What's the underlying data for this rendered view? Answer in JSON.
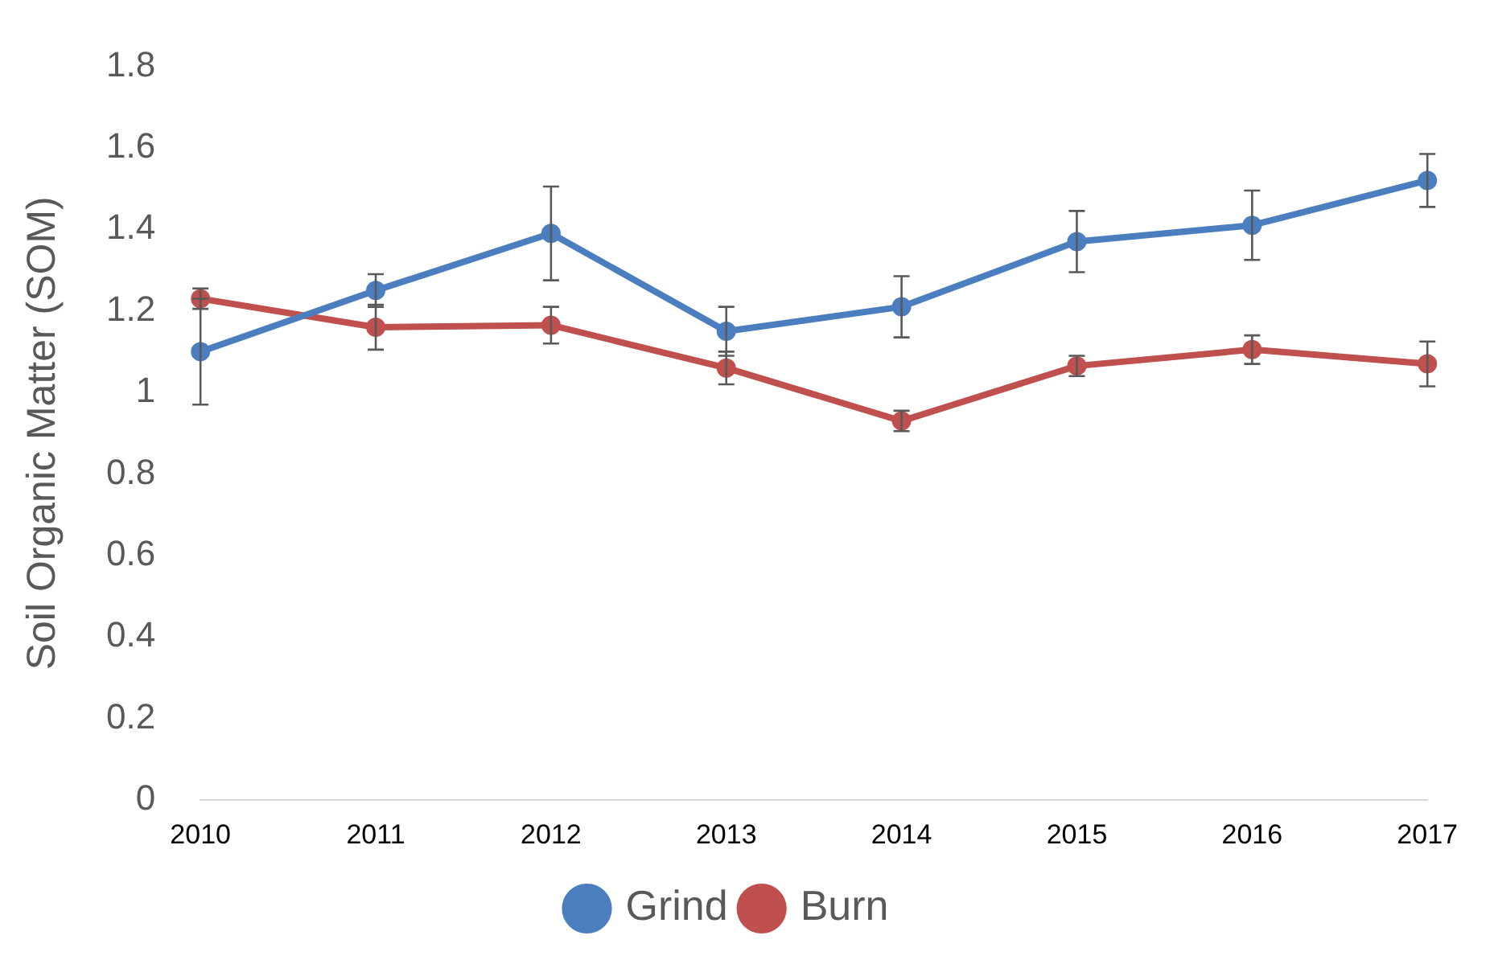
{
  "chart_data": {
    "type": "line",
    "ylabel": "Soil Organic Matter (SOM)",
    "categories": [
      "2010",
      "2011",
      "2012",
      "2013",
      "2014",
      "2015",
      "2016",
      "2017"
    ],
    "series": [
      {
        "name": "Grind",
        "color": "#4a7ebf",
        "values": [
          1.1,
          1.25,
          1.39,
          1.15,
          1.21,
          1.37,
          1.41,
          1.52
        ],
        "errors": [
          0.13,
          0.04,
          0.115,
          0.06,
          0.075,
          0.075,
          0.085,
          0.065
        ]
      },
      {
        "name": "Burn",
        "color": "#c0504d",
        "values": [
          1.23,
          1.16,
          1.165,
          1.06,
          0.93,
          1.065,
          1.105,
          1.07
        ],
        "errors": [
          0.025,
          0.055,
          0.045,
          0.04,
          0.025,
          0.025,
          0.035,
          0.055
        ]
      }
    ],
    "ylim": [
      0,
      1.8
    ],
    "yticks": [
      0,
      0.2,
      0.4,
      0.6,
      0.8,
      1,
      1.2,
      1.4,
      1.6,
      1.8
    ],
    "grid": false,
    "legend": "bottom",
    "marker": "circle",
    "line_style": "solid"
  }
}
